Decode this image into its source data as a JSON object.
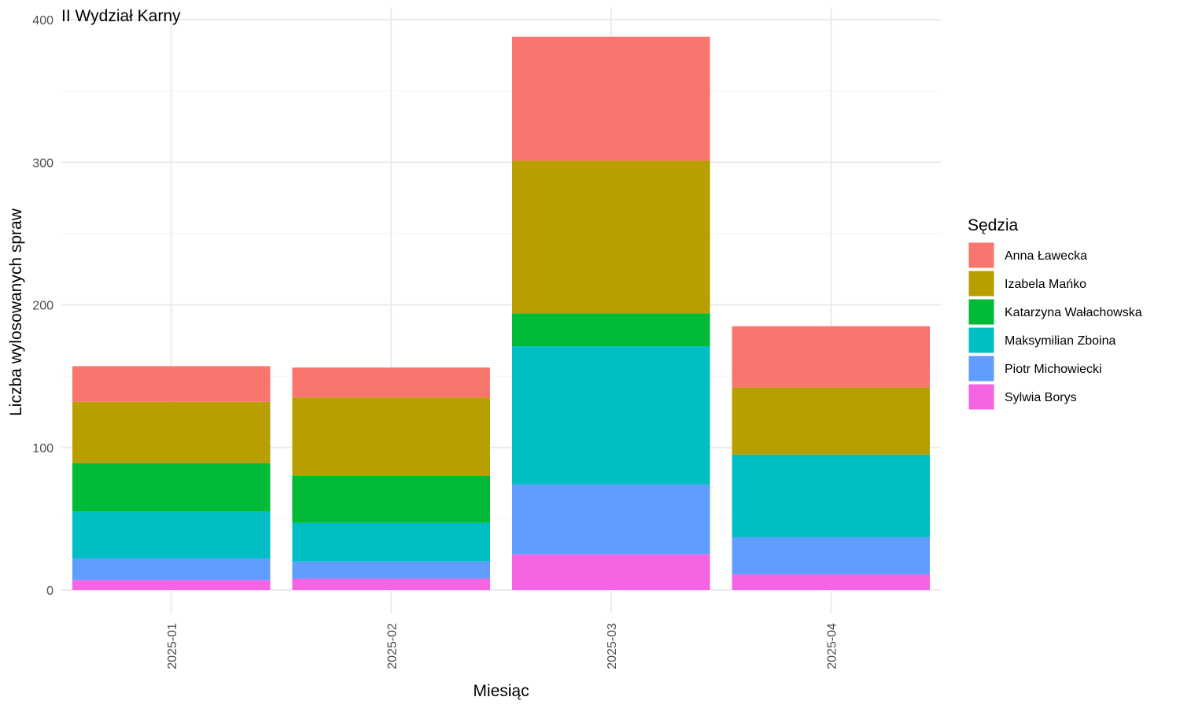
{
  "chart_data": {
    "type": "bar",
    "stacked": true,
    "title": "II Wydział Karny",
    "xlabel": "Miesiąc",
    "ylabel": "Liczba wylosowanych spraw",
    "ylim": [
      0,
      400
    ],
    "yticks": [
      0,
      100,
      200,
      300,
      400
    ],
    "grid": true,
    "legend_title": "Sędzia",
    "legend_position": "right",
    "categories": [
      "2025-01",
      "2025-02",
      "2025-03",
      "2025-04"
    ],
    "series": [
      {
        "name": "Anna Ławecka",
        "color": "#F8766D",
        "values": [
          25,
          21,
          87,
          43
        ]
      },
      {
        "name": "Izabela Mańko",
        "color": "#B79F00",
        "values": [
          43,
          55,
          107,
          47
        ]
      },
      {
        "name": "Katarzyna Wałachowska",
        "color": "#00BA38",
        "values": [
          34,
          33,
          23,
          0
        ]
      },
      {
        "name": "Maksymilian Zboina",
        "color": "#00BFC4",
        "values": [
          33,
          27,
          97,
          58
        ]
      },
      {
        "name": "Piotr Michowiecki",
        "color": "#619CFF",
        "values": [
          15,
          12,
          49,
          26
        ]
      },
      {
        "name": "Sylwia Borys",
        "color": "#F564E3",
        "values": [
          7,
          8,
          25,
          11
        ]
      }
    ]
  }
}
